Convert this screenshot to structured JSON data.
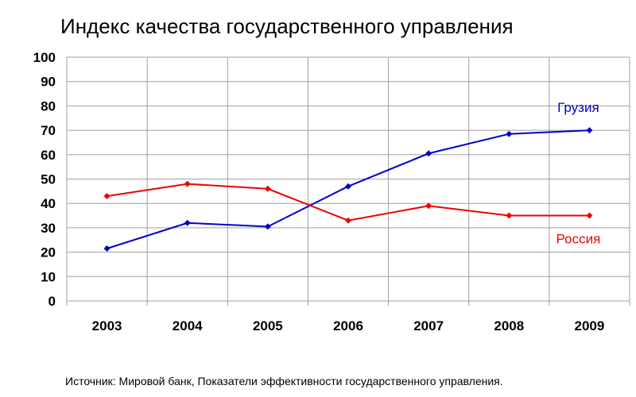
{
  "chart_data": {
    "type": "line",
    "title": "Индекс качества государственного управления",
    "categories": [
      "2003",
      "2004",
      "2005",
      "2006",
      "2007",
      "2008",
      "2009"
    ],
    "ylim": [
      0,
      100
    ],
    "yticks": [
      0,
      10,
      20,
      30,
      40,
      50,
      60,
      70,
      80,
      90,
      100
    ],
    "grid": true,
    "legend": "inline labels",
    "series": [
      {
        "name": "Грузия",
        "color": "#0000cc",
        "values": [
          21.5,
          32,
          30.5,
          47,
          60.5,
          68.5,
          70
        ]
      },
      {
        "name": "Россия",
        "color": "#ee0000",
        "values": [
          43,
          48,
          46,
          33,
          39,
          35,
          35
        ]
      }
    ]
  },
  "source": "Источник: Мировой банк, Показатели эффективности государственного управления."
}
